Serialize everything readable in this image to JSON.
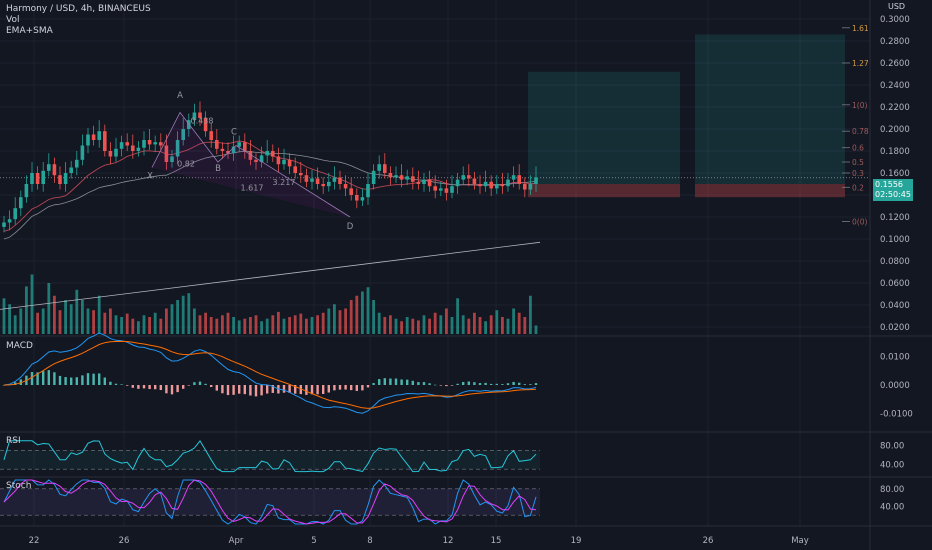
{
  "legend": {
    "symbol": "Harmony / USD, 4h, BINANCEUS",
    "vol": "Vol",
    "ma": "EMA+SMA"
  },
  "currency": "USD",
  "price_tag": {
    "price": "0.1556",
    "countdown": "02:50:45"
  },
  "panes": {
    "macd": "MACD",
    "rsi": "RSI",
    "stoch": "Stoch"
  },
  "colors": {
    "up": "#26a69a",
    "down": "#ef5350",
    "bg": "#131722",
    "grid": "#1e2230"
  },
  "chart_data": [
    {
      "type": "candlestick",
      "title": "Harmony / USD, 4h, BINANCEUS",
      "ylim": [
        0.01,
        0.31
      ],
      "yticks": [
        "0.3000",
        "0.2800",
        "0.2600",
        "0.2400",
        "0.2200",
        "0.2000",
        "0.1800",
        "0.1600",
        "0.1400",
        "0.1200",
        "0.1000",
        "0.0800",
        "0.0600",
        "0.0400",
        "0.0200"
      ],
      "xticks": [
        "22",
        "26",
        "Apr",
        "5",
        "8",
        "12",
        "15",
        "19",
        "26",
        "May"
      ],
      "close": [
        0.115,
        0.118,
        0.128,
        0.138,
        0.15,
        0.16,
        0.15,
        0.162,
        0.168,
        0.158,
        0.15,
        0.16,
        0.165,
        0.172,
        0.185,
        0.195,
        0.19,
        0.198,
        0.18,
        0.175,
        0.182,
        0.188,
        0.185,
        0.18,
        0.183,
        0.19,
        0.186,
        0.188,
        0.185,
        0.17,
        0.175,
        0.19,
        0.2,
        0.208,
        0.215,
        0.21,
        0.198,
        0.19,
        0.182,
        0.18,
        0.178,
        0.184,
        0.188,
        0.18,
        0.172,
        0.17,
        0.176,
        0.18,
        0.175,
        0.168,
        0.172,
        0.166,
        0.16,
        0.158,
        0.152,
        0.155,
        0.15,
        0.148,
        0.152,
        0.156,
        0.15,
        0.146,
        0.14,
        0.135,
        0.138,
        0.15,
        0.162,
        0.168,
        0.16,
        0.156,
        0.158,
        0.154,
        0.157,
        0.152,
        0.15,
        0.154,
        0.148,
        0.144,
        0.146,
        0.142,
        0.148,
        0.154,
        0.158,
        0.155,
        0.15,
        0.148,
        0.152,
        0.146,
        0.15,
        0.148,
        0.154,
        0.158,
        0.15,
        0.145,
        0.15,
        0.156
      ],
      "volume": [
        42,
        35,
        22,
        30,
        56,
        70,
        25,
        30,
        60,
        45,
        28,
        40,
        35,
        52,
        40,
        30,
        28,
        45,
        25,
        30,
        22,
        20,
        24,
        18,
        15,
        22,
        20,
        25,
        18,
        30,
        35,
        40,
        45,
        48,
        30,
        22,
        25,
        20,
        18,
        22,
        25,
        20,
        16,
        18,
        20,
        22,
        15,
        18,
        22,
        26,
        18,
        20,
        22,
        24,
        18,
        20,
        22,
        25,
        30,
        35,
        28,
        30,
        40,
        45,
        50,
        55,
        40,
        25,
        20,
        22,
        18,
        15,
        20,
        18,
        16,
        22,
        18,
        25,
        22,
        30,
        20,
        42,
        22,
        18,
        25,
        20,
        15,
        22,
        28,
        20,
        18,
        30,
        25,
        20,
        45,
        10
      ],
      "annotations": [
        "A",
        "X",
        "C",
        "B",
        "D",
        "0.438",
        "0.82",
        "3.217",
        "1.617"
      ],
      "fib_levels": [
        "1.61",
        "1.27",
        "1(0)",
        "0.78",
        "0.6",
        "0.5",
        "0.3",
        "0.2",
        "0(0)"
      ]
    },
    {
      "type": "line",
      "title": "MACD",
      "yticks": [
        "0.0100",
        "0.0000",
        "-0.0100"
      ],
      "ylim": [
        -0.0145,
        0.0145
      ]
    },
    {
      "type": "line",
      "title": "RSI",
      "yticks": [
        "80.00",
        "40.00"
      ],
      "ylim": [
        22,
        96
      ]
    },
    {
      "type": "line",
      "title": "Stoch",
      "yticks": [
        "80.00",
        "40.00"
      ],
      "ylim": [
        0,
        100
      ]
    }
  ]
}
